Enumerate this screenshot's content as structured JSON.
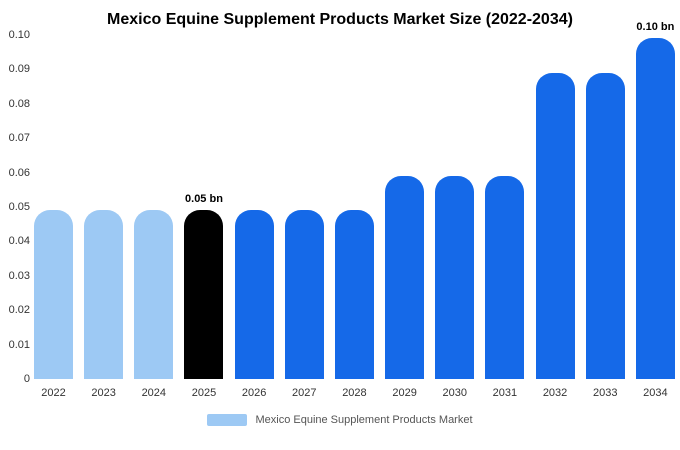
{
  "title": "Mexico Equine Supplement Products Market Size (2022-2034)",
  "legend": {
    "label": "Mexico Equine Supplement Products Market",
    "swatch_color": "#9DC9F4"
  },
  "colors": {
    "light_blue": "#9DC9F4",
    "highlight_black": "#000000",
    "primary_blue": "#1569E8",
    "background": "#FFFFFF"
  },
  "chart_data": {
    "type": "bar",
    "title": "Mexico Equine Supplement Products Market Size (2022-2034)",
    "categories": [
      "2022",
      "2023",
      "2024",
      "2025",
      "2026",
      "2027",
      "2028",
      "2029",
      "2030",
      "2031",
      "2032",
      "2033",
      "2034"
    ],
    "values": [
      0.049,
      0.049,
      0.049,
      0.049,
      0.049,
      0.049,
      0.049,
      0.059,
      0.059,
      0.059,
      0.089,
      0.089,
      0.099
    ],
    "unit": "bn",
    "bar_colors": [
      "#9DC9F4",
      "#9DC9F4",
      "#9DC9F4",
      "#000000",
      "#1569E8",
      "#1569E8",
      "#1569E8",
      "#1569E8",
      "#1569E8",
      "#1569E8",
      "#1569E8",
      "#1569E8",
      "#1569E8"
    ],
    "annotations": [
      {
        "index": 3,
        "category": "2025",
        "text": "0.05 bn"
      },
      {
        "index": 12,
        "category": "2034",
        "text": "0.10 bn"
      }
    ],
    "xlabel": "",
    "ylabel": "",
    "ylim": [
      0,
      0.1
    ],
    "yticks": [
      "0",
      "0.01",
      "0.02",
      "0.03",
      "0.04",
      "0.05",
      "0.06",
      "0.07",
      "0.08",
      "0.09",
      "0.10"
    ],
    "grid": false,
    "legend_position": "bottom"
  }
}
